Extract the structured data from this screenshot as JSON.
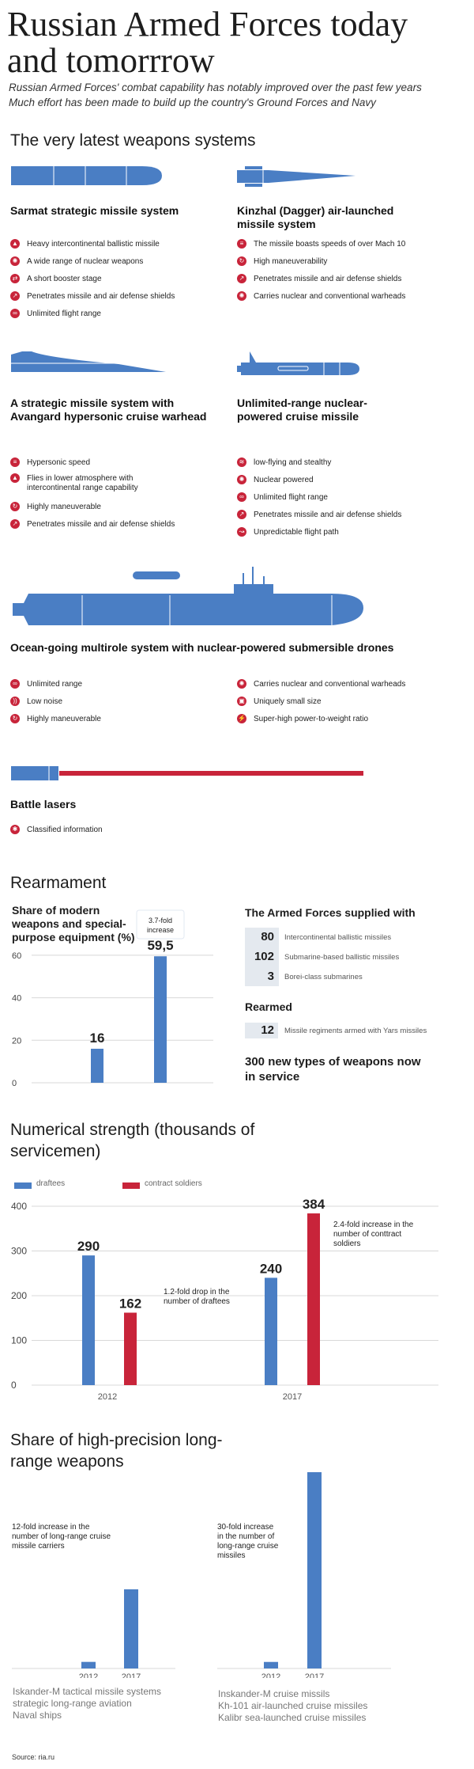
{
  "header": {
    "title": "Russian Armed Forces today and tomorrrow",
    "subtitle_1": "Russian Armed Forces' combat capability has notably improved over the past few years",
    "subtitle_2": "Much effort has been made to build up the country's Ground Forces and Navy"
  },
  "weapons": {
    "section_title": "The very latest weapons systems",
    "sarmat": {
      "title": "Sarmat strategic missile system",
      "features": [
        "Heavy intercontinental ballistic missile",
        "A wide range of nuclear weapons",
        "A short booster stage",
        "Penetrates missile and air defense shields",
        "Unlimited flight range"
      ]
    },
    "kinzhal": {
      "title": "Kinzhal (Dagger) air-launched missile system",
      "features": [
        "The missile boasts speeds of over Mach 10",
        "High maneuverability",
        "Penetrates missile and air defense shields",
        "Carries nuclear and conventional warheads"
      ]
    },
    "avangard": {
      "title": "A strategic missile system with Avangard hypersonic cruise warhead",
      "features": [
        "Hypersonic speed",
        "Flies in lower atmosphere with intercontinental range capability",
        "Highly maneuverable",
        "Penetrates missile and air defense shields"
      ]
    },
    "cruise": {
      "title": "Unlimited-range nuclear-powered cruise missile",
      "features": [
        "low-flying and stealthy",
        "Nuclear powered",
        "Unlimited flight range",
        "Penetrates missile and air defense shields",
        "Unpredictable flight path"
      ]
    },
    "drones": {
      "title": "Ocean-going multirole system with nuclear-powered submersible drones",
      "features_left": [
        "Unlimited range",
        "Low noise",
        "Highly maneuverable"
      ],
      "features_right": [
        "Carries nuclear and conventional warheads",
        "Uniquely small size",
        "Super-high power-to-weight ratio"
      ]
    },
    "lasers": {
      "title": "Battle lasers",
      "features": [
        "Classified information"
      ]
    },
    "colors": {
      "blue": "#4a7ec4",
      "red": "#c8243a"
    }
  },
  "rearmament": {
    "section_title": "Rearmament",
    "share_title": "Share of modern weapons and special-purpose equipment (%)",
    "callout": "3.7-fold increase",
    "supplied_title": "The Armed Forces supplied with",
    "supplied": [
      {
        "value": "80",
        "label": "Intercontinental ballistic missiles"
      },
      {
        "value": "102",
        "label": "Submarine-based ballistic missiles"
      },
      {
        "value": "3",
        "label": "Borei-class submarines"
      }
    ],
    "rearmed_title": "Rearmed",
    "rearmed": {
      "value": "12",
      "label": "Missile regiments armed with Yars missiles"
    },
    "new_types": "300 new types of weapons now in service"
  },
  "strength": {
    "section_title": "Numerical strength (thousands of servicemen)",
    "legend_draftees": "draftees",
    "legend_contract": "contract soldiers",
    "note_drop": "1.2-fold drop in the number of draftees",
    "note_increase": "2.4-fold increase in the number of conttract soldiers"
  },
  "precision": {
    "section_title": "Share of high-precision long-range weapons",
    "left_note": "12-fold increase in the number of long-range cruise missile carriers",
    "right_note": "30-fold increase in the number of long-range cruise missiles",
    "left_labels": [
      "Iskander-M tactical missile systems",
      "strategic long-range aviation",
      "Naval ships"
    ],
    "right_labels": [
      "Inskander-M cruise missils",
      "Kh-101 air-launched cruise missiles",
      "Kalibr sea-launched cruise missiles"
    ]
  },
  "source": "Source: ria.ru",
  "chart_data": [
    {
      "type": "bar",
      "title": "Share of modern weapons and special-purpose equipment (%)",
      "categories": [
        "",
        ""
      ],
      "values": [
        16,
        59.5
      ],
      "value_labels": [
        "16",
        "59,5"
      ],
      "ylim": [
        0,
        70
      ],
      "yticks": [
        0,
        20,
        40,
        60
      ],
      "grid": true
    },
    {
      "type": "bar",
      "title": "Numerical strength (thousands of servicemen)",
      "categories": [
        "2012",
        "2017"
      ],
      "series": [
        {
          "name": "draftees",
          "values": [
            290,
            240
          ],
          "color": "#4a7ec4"
        },
        {
          "name": "contract soldiers",
          "values": [
            162,
            384
          ],
          "color": "#c8243a"
        }
      ],
      "ylim": [
        0,
        400
      ],
      "yticks": [
        0,
        100,
        200,
        300,
        400
      ],
      "legend": "top-left",
      "grid": true
    },
    {
      "type": "bar",
      "title": "",
      "categories": [
        "2012",
        "2017"
      ],
      "values": [
        1,
        12
      ],
      "ylim": [
        0,
        12
      ]
    },
    {
      "type": "bar",
      "title": "",
      "categories": [
        "2012",
        "2017"
      ],
      "values": [
        1,
        30
      ],
      "ylim": [
        0,
        30
      ]
    }
  ]
}
